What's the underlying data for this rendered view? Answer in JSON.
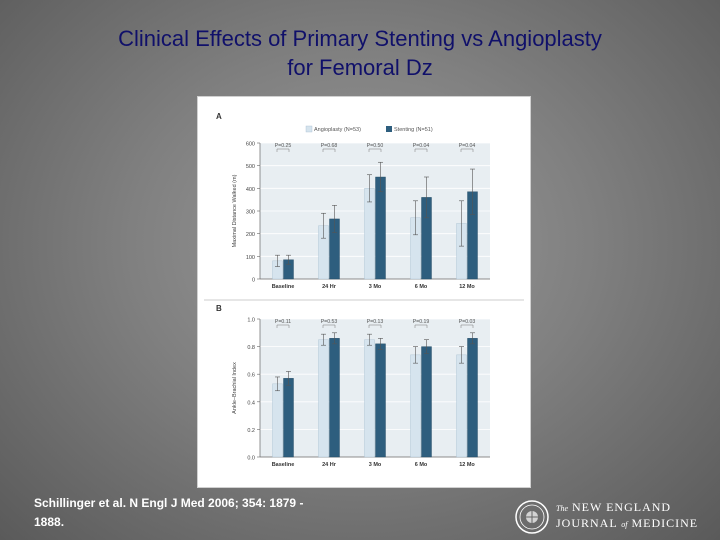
{
  "slide": {
    "title_line1": "Clinical Effects of Primary Stenting vs Angioplasty",
    "title_line2": "for Femoral Dz",
    "citation_line1": "Schillinger et al. N Engl J Med 2006; 354: 1879 -",
    "citation_line2": "1888.",
    "logo": {
      "the": "The",
      "line1": "NEW ENGLAND",
      "line2_a": "JOURNAL",
      "of": "of",
      "line2_b": "MEDICINE"
    }
  },
  "colors": {
    "title": "#10106a",
    "angioplasty": "#d6e4ee",
    "stenting": "#2e5e7e",
    "plot_bg": "#e8eef2"
  },
  "chart_data": [
    {
      "panel": "A",
      "type": "bar",
      "ylabel": "Maximal Distance Walked (m)",
      "ylim": [
        0,
        600
      ],
      "yticks": [
        0,
        100,
        200,
        300,
        400,
        500,
        600
      ],
      "categories": [
        "Baseline",
        "24 Hr",
        "3 Mo",
        "6 Mo",
        "12 Mo"
      ],
      "legend": [
        "Angioplasty (N=53)",
        "Stenting (N=51)"
      ],
      "series": [
        {
          "name": "Angioplasty (N=53)",
          "values": [
            80,
            235,
            400,
            270,
            245
          ],
          "err": [
            25,
            55,
            60,
            75,
            100
          ]
        },
        {
          "name": "Stenting (N=51)",
          "values": [
            85,
            265,
            450,
            360,
            385
          ],
          "err": [
            20,
            60,
            65,
            90,
            100
          ]
        }
      ],
      "p_values": [
        "P=0.25",
        "P=0.68",
        "P=0.50",
        "P=0.04",
        "P=0.04"
      ]
    },
    {
      "panel": "B",
      "type": "bar",
      "ylabel": "Ankle–Brachial Index",
      "ylim": [
        0,
        1.0
      ],
      "yticks": [
        "0.0",
        "0.2",
        "0.4",
        "0.6",
        "0.8",
        "1.0"
      ],
      "categories": [
        "Baseline",
        "24 Hr",
        "3 Mo",
        "6 Mo",
        "12 Mo"
      ],
      "legend": [],
      "series": [
        {
          "name": "Angioplasty (N=53)",
          "values": [
            0.53,
            0.85,
            0.85,
            0.74,
            0.74
          ],
          "err": [
            0.05,
            0.04,
            0.04,
            0.06,
            0.06
          ]
        },
        {
          "name": "Stenting (N=51)",
          "values": [
            0.57,
            0.86,
            0.82,
            0.8,
            0.86
          ],
          "err": [
            0.05,
            0.04,
            0.04,
            0.05,
            0.04
          ]
        }
      ],
      "p_values": [
        "P=0.11",
        "P=0.53",
        "P=0.13",
        "P=0.19",
        "P=0.03"
      ]
    }
  ]
}
